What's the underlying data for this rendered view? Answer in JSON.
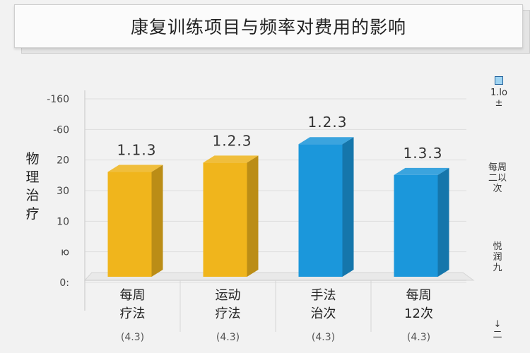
{
  "chart_data": {
    "type": "bar",
    "title": "康复训练项目与频率对费用的影响",
    "ylabel": "物理治疗",
    "categories": [
      [
        "每周",
        "疗法"
      ],
      [
        "运动",
        "疗法"
      ],
      [
        "手法",
        "治次"
      ],
      [
        "每周",
        "12次"
      ]
    ],
    "category_sub": [
      "(4.3)",
      "(4.3)",
      "(4.3)",
      "(4.3)"
    ],
    "values": [
      34,
      37,
      43,
      33
    ],
    "data_labels": [
      "1.1.3",
      "1.2.3",
      "1.2.3",
      "1.3.3"
    ],
    "bar_colors": [
      "#f0b51c",
      "#f0b51c",
      "#1b97db",
      "#1b97db"
    ],
    "ytick_labels": [
      "0:",
      "ю",
      "10",
      "30",
      "20",
      "-60",
      "-160"
    ],
    "ylim": [
      0,
      60
    ],
    "grid": true,
    "legend": {
      "position": "right",
      "items": [
        [
          "1.lo",
          "±"
        ],
        [
          "每周",
          "二以",
          "次"
        ],
        [
          "悦",
          "润",
          "九"
        ],
        [
          "↓",
          "二"
        ]
      ]
    }
  }
}
